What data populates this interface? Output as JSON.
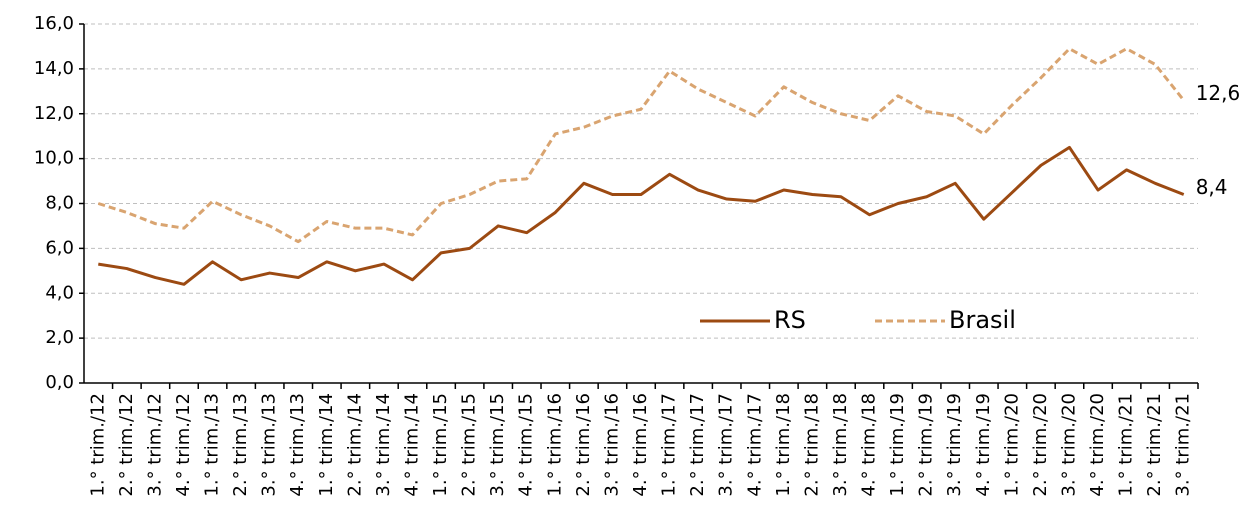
{
  "chart_data": {
    "type": "line",
    "categories": [
      "1.° trim./12",
      "2.° trim./12",
      "3.° trim./12",
      "4.° trim./12",
      "1.° trim./13",
      "2.° trim./13",
      "3.° trim./13",
      "4.° trim./13",
      "1.° trim./14",
      "2.° trim./14",
      "3.° trim./14",
      "4.° trim./14",
      "1.° trim./15",
      "2.° trim./15",
      "3.° trim./15",
      "4.° trim./15",
      "1.° trim./16",
      "2.° trim./16",
      "3.° trim./16",
      "4.° trim./16",
      "1.° trim./17",
      "2.° trim./17",
      "3.° trim./17",
      "4.° trim./17",
      "1.° trim./18",
      "2.° trim./18",
      "3.° trim./18",
      "4.° trim./18",
      "1.° trim./19",
      "2.° trim./19",
      "3.° trim./19",
      "4.° trim./19",
      "1.° trim./20",
      "2.° trim./20",
      "3.° trim./20",
      "4.° trim./20",
      "1.° trim./21",
      "2.° trim./21",
      "3.° trim./21"
    ],
    "series": [
      {
        "name": "RS",
        "color": "#9c4a12",
        "line_style": "solid",
        "values": [
          5.3,
          5.1,
          4.7,
          4.4,
          5.4,
          4.6,
          4.9,
          4.7,
          5.4,
          5.0,
          5.3,
          4.6,
          5.8,
          6.0,
          7.0,
          6.7,
          7.6,
          8.9,
          8.4,
          8.4,
          9.3,
          8.6,
          8.2,
          8.1,
          8.6,
          8.4,
          8.3,
          7.5,
          8.0,
          8.3,
          8.9,
          7.3,
          8.5,
          9.7,
          10.5,
          8.6,
          9.5,
          8.9,
          8.4
        ],
        "value_labels": [
          null,
          null,
          null,
          null,
          null,
          null,
          null,
          null,
          null,
          null,
          null,
          null,
          null,
          null,
          null,
          null,
          null,
          null,
          null,
          null,
          null,
          null,
          null,
          null,
          null,
          null,
          null,
          null,
          null,
          null,
          null,
          null,
          null,
          null,
          null,
          null,
          null,
          null,
          "8,4"
        ]
      },
      {
        "name": "Brasil",
        "color": "#d9a470",
        "line_style": "dashed",
        "values": [
          8.0,
          7.6,
          7.1,
          6.9,
          8.1,
          7.5,
          7.0,
          6.3,
          7.2,
          6.9,
          6.9,
          6.6,
          8.0,
          8.4,
          9.0,
          9.1,
          11.1,
          11.4,
          11.9,
          12.2,
          13.9,
          13.1,
          12.5,
          11.9,
          13.2,
          12.5,
          12.0,
          11.7,
          12.8,
          12.1,
          11.9,
          11.1,
          12.4,
          13.6,
          14.9,
          14.2,
          14.9,
          14.2,
          12.6
        ],
        "value_labels": [
          null,
          null,
          null,
          null,
          null,
          null,
          null,
          null,
          null,
          null,
          null,
          null,
          null,
          null,
          null,
          null,
          null,
          null,
          null,
          null,
          null,
          null,
          null,
          null,
          null,
          null,
          null,
          null,
          null,
          null,
          null,
          null,
          null,
          null,
          null,
          null,
          null,
          null,
          "12,6"
        ]
      }
    ],
    "ylim": [
      0,
      16
    ],
    "yticks": [
      {
        "value": 0,
        "label": "0,0"
      },
      {
        "value": 2,
        "label": "2,0"
      },
      {
        "value": 4,
        "label": "4,0"
      },
      {
        "value": 6,
        "label": "6,0"
      },
      {
        "value": 8,
        "label": "8,0"
      },
      {
        "value": 10,
        "label": "10,0"
      },
      {
        "value": 12,
        "label": "12,0"
      },
      {
        "value": 14,
        "label": "14,0"
      },
      {
        "value": 16,
        "label": "16,0"
      }
    ],
    "grid": true,
    "legend": "lower right"
  }
}
